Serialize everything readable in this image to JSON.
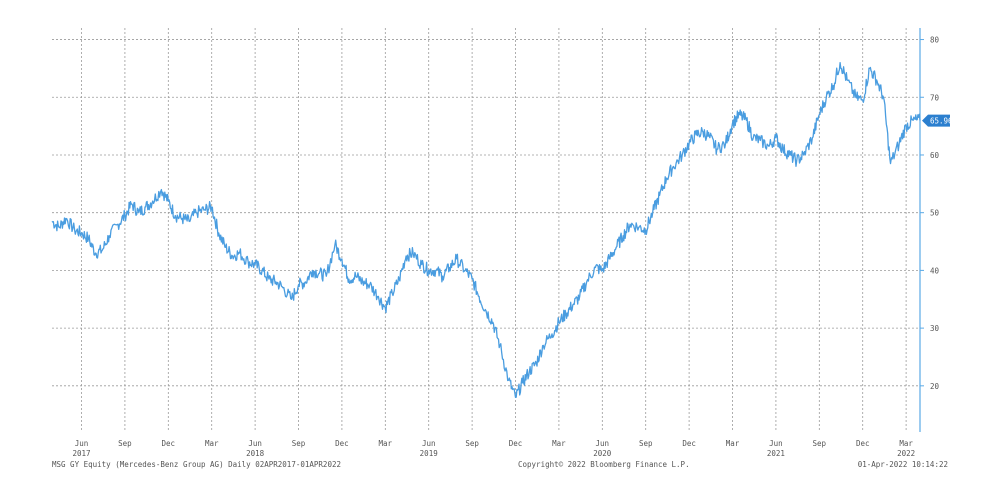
{
  "footer": {
    "left": "MSG GY Equity (Mercedes-Benz Group AG)  Daily 02APR2017-01APR2022",
    "center": "Copyright© 2022 Bloomberg Finance L.P.",
    "right": "01-Apr-2022 10:14:22"
  },
  "chart_data": {
    "type": "line",
    "ylim": [
      12,
      82
    ],
    "y_ticks": [
      20,
      30,
      40,
      50,
      60,
      70,
      80
    ],
    "grid": true,
    "line_color": "#4a9de0",
    "last_value_label": "65.96",
    "x_ticks": [
      {
        "label": "Jun",
        "x": 2017.42
      },
      {
        "label": "Sep",
        "x": 2017.67
      },
      {
        "label": "Dec",
        "x": 2017.92
      },
      {
        "label": "Mar",
        "x": 2018.17
      },
      {
        "label": "Jun",
        "x": 2018.42
      },
      {
        "label": "Sep",
        "x": 2018.67
      },
      {
        "label": "Dec",
        "x": 2018.92
      },
      {
        "label": "Mar",
        "x": 2019.17
      },
      {
        "label": "Jun",
        "x": 2019.42
      },
      {
        "label": "Sep",
        "x": 2019.67
      },
      {
        "label": "Dec",
        "x": 2019.92
      },
      {
        "label": "Mar",
        "x": 2020.17
      },
      {
        "label": "Jun",
        "x": 2020.42
      },
      {
        "label": "Sep",
        "x": 2020.67
      },
      {
        "label": "Dec",
        "x": 2020.92
      },
      {
        "label": "Mar",
        "x": 2021.17
      },
      {
        "label": "Jun",
        "x": 2021.42
      },
      {
        "label": "Sep",
        "x": 2021.67
      },
      {
        "label": "Dec",
        "x": 2021.92
      },
      {
        "label": "Mar",
        "x": 2022.17
      }
    ],
    "year_labels": [
      {
        "label": "2017",
        "x": 2017.42
      },
      {
        "label": "2018",
        "x": 2018.42
      },
      {
        "label": "2019",
        "x": 2019.42
      },
      {
        "label": "2020",
        "x": 2020.42
      },
      {
        "label": "2021",
        "x": 2021.42
      },
      {
        "label": "2022",
        "x": 2022.17
      }
    ],
    "series": [
      {
        "x": [
          2017.25,
          2017.29,
          2017.33,
          2017.38,
          2017.42,
          2017.46,
          2017.5,
          2017.54,
          2017.58,
          2017.63,
          2017.67,
          2017.71,
          2017.75,
          2017.79,
          2017.83,
          2017.88,
          2017.92,
          2017.96,
          2018.0,
          2018.04,
          2018.08,
          2018.13,
          2018.17,
          2018.21,
          2018.25,
          2018.29,
          2018.33,
          2018.38,
          2018.42,
          2018.46,
          2018.5,
          2018.54,
          2018.58,
          2018.63,
          2018.67,
          2018.71,
          2018.75,
          2018.79,
          2018.83,
          2018.88,
          2018.92,
          2018.96,
          2019.0,
          2019.04,
          2019.08,
          2019.13,
          2019.17,
          2019.21,
          2019.25,
          2019.29,
          2019.33,
          2019.38,
          2019.42,
          2019.46,
          2019.5,
          2019.54,
          2019.58,
          2019.63,
          2019.67,
          2019.71,
          2019.75,
          2019.79,
          2019.83,
          2019.88,
          2019.92,
          2019.96,
          2020.0,
          2020.04,
          2020.08,
          2020.13,
          2020.17,
          2020.21,
          2020.25,
          2020.29,
          2020.33,
          2020.38,
          2020.42,
          2020.46,
          2020.5,
          2020.54,
          2020.58,
          2020.63,
          2020.67,
          2020.71,
          2020.75,
          2020.79,
          2020.83,
          2020.88,
          2020.92,
          2020.96,
          2021.0,
          2021.04,
          2021.08,
          2021.13,
          2021.17,
          2021.21,
          2021.25,
          2021.29,
          2021.33,
          2021.38,
          2021.42,
          2021.46,
          2021.5,
          2021.54,
          2021.58,
          2021.63,
          2021.67,
          2021.71,
          2021.75,
          2021.79,
          2021.83,
          2021.88,
          2021.92,
          2021.96,
          2022.0,
          2022.04,
          2022.08,
          2022.13,
          2022.17,
          2022.21,
          2022.25
        ],
        "values": [
          48.5,
          47.5,
          49.0,
          47.0,
          46.5,
          45.5,
          43.0,
          43.5,
          46.0,
          48.0,
          49.5,
          51.5,
          50.0,
          51.0,
          52.0,
          54.0,
          52.0,
          49.5,
          49.0,
          48.5,
          50.0,
          50.5,
          51.0,
          46.5,
          44.0,
          42.5,
          43.0,
          41.5,
          41.0,
          40.0,
          38.5,
          38.0,
          37.0,
          35.0,
          37.5,
          38.0,
          40.0,
          39.5,
          39.0,
          44.5,
          42.0,
          38.5,
          39.0,
          38.0,
          37.5,
          35.5,
          33.5,
          36.0,
          38.5,
          42.5,
          43.0,
          41.0,
          40.0,
          40.0,
          39.0,
          40.5,
          42.0,
          40.0,
          38.5,
          35.5,
          33.0,
          31.0,
          27.0,
          21.0,
          18.0,
          20.5,
          22.5,
          24.0,
          27.0,
          29.0,
          31.0,
          32.5,
          34.0,
          35.5,
          38.0,
          40.5,
          40.0,
          42.0,
          44.0,
          46.0,
          48.0,
          47.5,
          47.0,
          50.0,
          53.0,
          56.0,
          58.0,
          60.0,
          62.0,
          63.5,
          64.0,
          63.0,
          61.0,
          62.0,
          65.5,
          67.0,
          66.0,
          63.0,
          62.5,
          61.5,
          63.0,
          61.0,
          60.0,
          59.0,
          60.0,
          63.0,
          67.0,
          70.0,
          72.0,
          76.0,
          73.0,
          70.0,
          69.5,
          75.0,
          73.0,
          70.0,
          58.5,
          62.0,
          65.0,
          66.0,
          66.0
        ]
      }
    ]
  }
}
